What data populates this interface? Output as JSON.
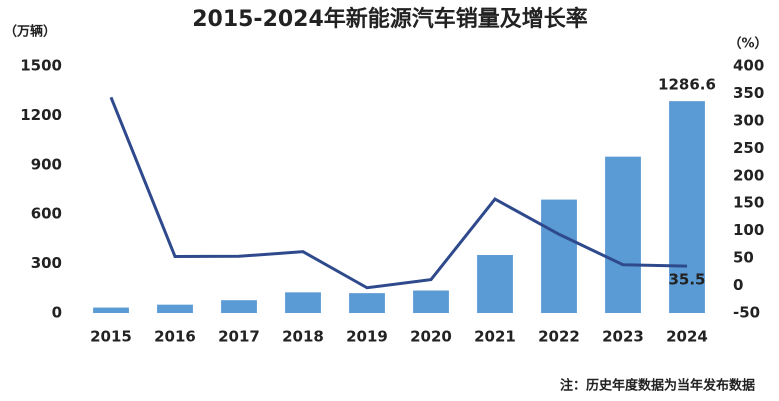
{
  "chart_data": {
    "type": "bar_line",
    "title": "2015-2024年新能源汽车销量及增长率",
    "y_label": "（万辆）",
    "y2_label": "（%）",
    "categories": [
      "2015",
      "2016",
      "2017",
      "2018",
      "2019",
      "2020",
      "2021",
      "2022",
      "2023",
      "2024"
    ],
    "series": [
      {
        "name": "销量",
        "type": "bar",
        "color": "#5b9bd5",
        "values": [
          33.1,
          50.7,
          77.7,
          125.6,
          120.6,
          136.7,
          352.1,
          688.7,
          949.5,
          1286.6
        ]
      },
      {
        "name": "增长率",
        "type": "line",
        "axis": "y2",
        "color": "#2f4a8c",
        "values": [
          343,
          53,
          53.3,
          61.7,
          -4,
          10.9,
          157.5,
          93.4,
          37.9,
          35.5
        ]
      }
    ],
    "ylim": [
      0,
      1500
    ],
    "yticks": [
      0,
      300,
      600,
      900,
      1200,
      1500
    ],
    "y2lim": [
      -50,
      400
    ],
    "y2ticks": [
      -50,
      0,
      50,
      100,
      150,
      200,
      250,
      300,
      350,
      400
    ],
    "note": "注：历史年度数据为当年发布数据"
  }
}
